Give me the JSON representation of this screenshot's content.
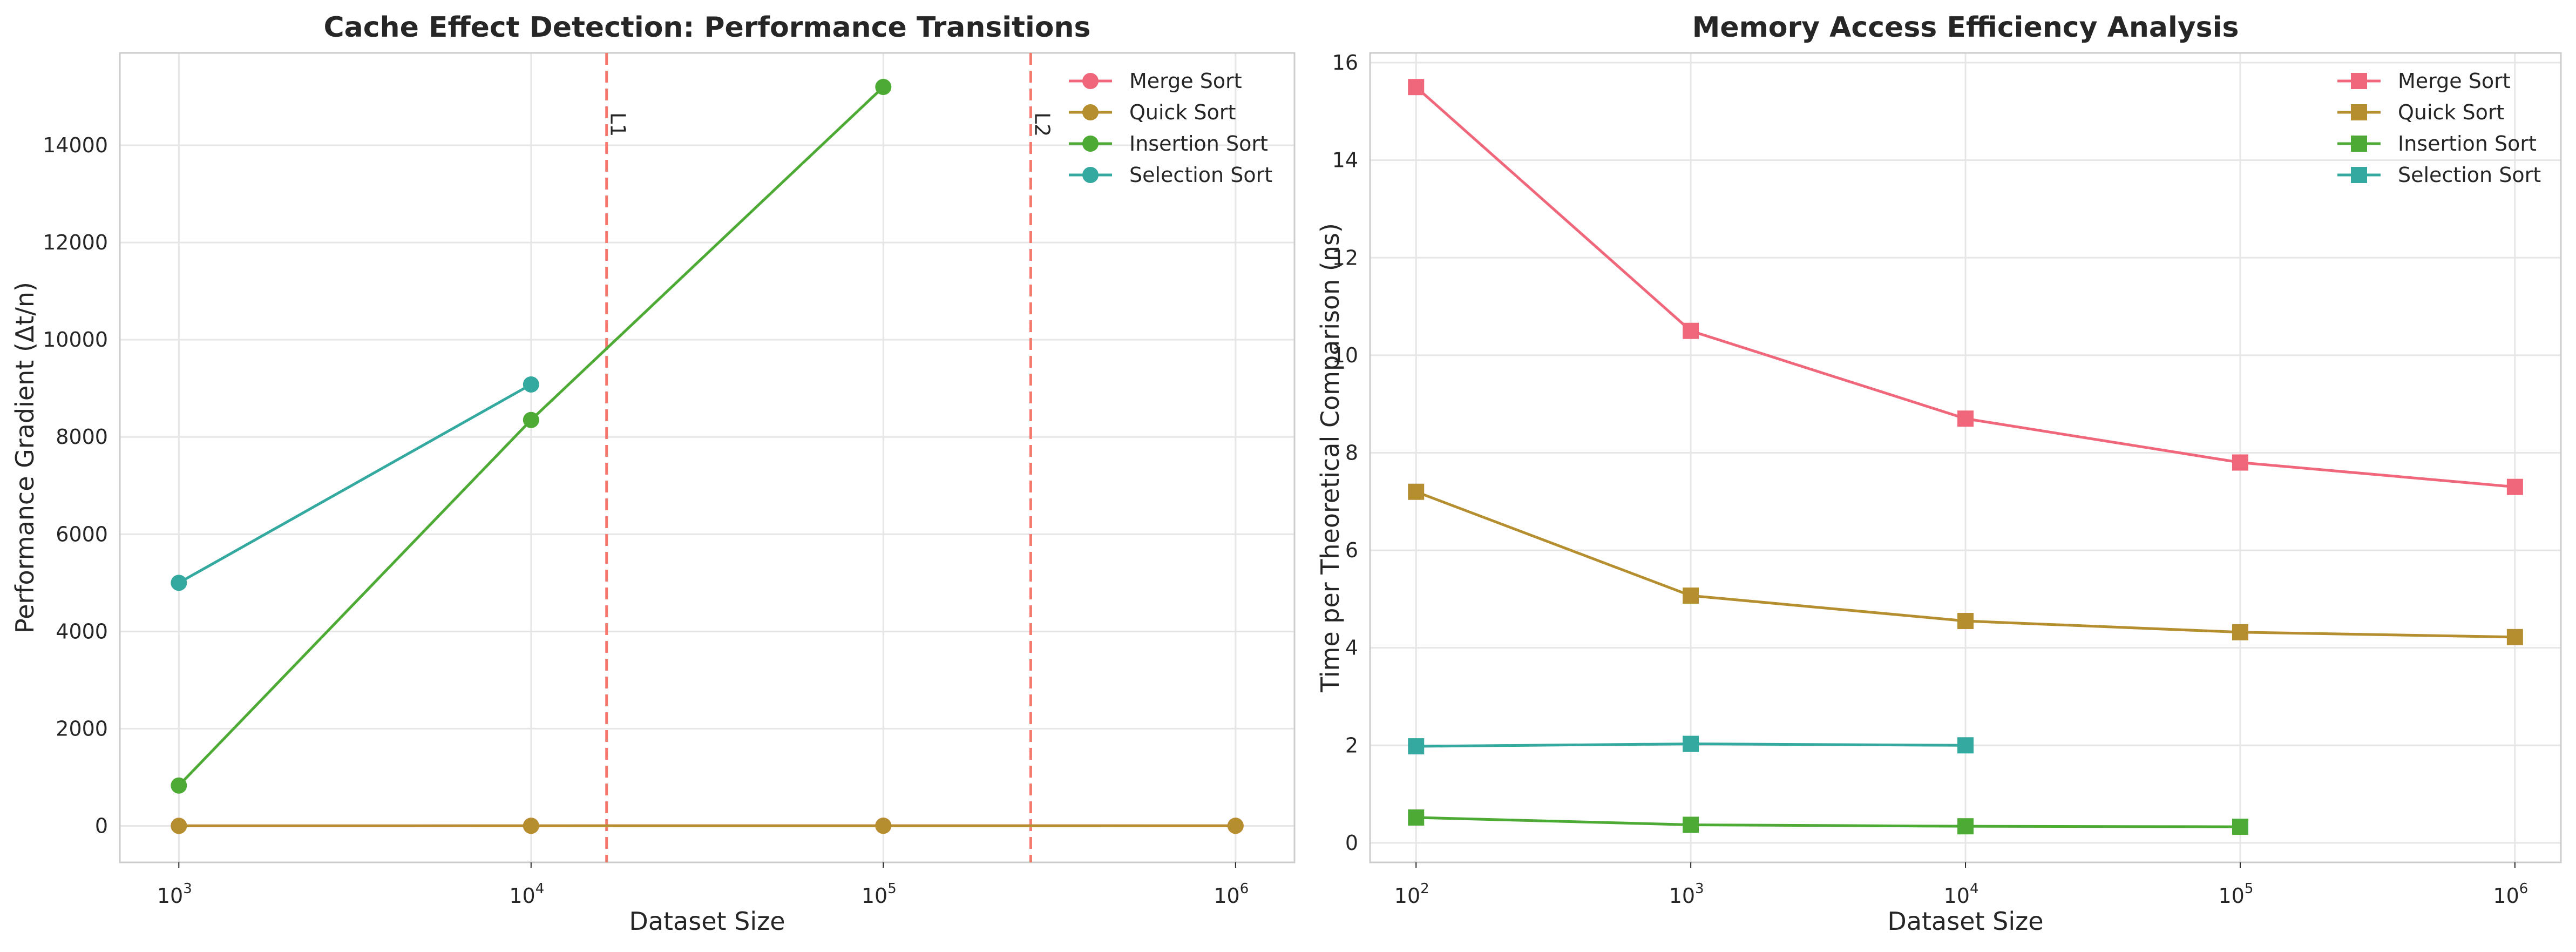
{
  "chart_data": [
    {
      "type": "line",
      "title": "Cache Effect Detection: Performance Transitions",
      "xlabel": "Dataset Size",
      "ylabel": "Performance Gradient (Δt/n)",
      "x_scale": "log",
      "xlim": [
        680,
        1470000
      ],
      "ylim": [
        -750,
        15900
      ],
      "x_ticks": [
        1000,
        10000,
        100000,
        1000000
      ],
      "x_tick_labels": [
        {
          "base": "10",
          "exp": "3"
        },
        {
          "base": "10",
          "exp": "4"
        },
        {
          "base": "10",
          "exp": "5"
        },
        {
          "base": "10",
          "exp": "6"
        }
      ],
      "y_ticks": [
        0,
        2000,
        4000,
        6000,
        8000,
        10000,
        12000,
        14000
      ],
      "y_tick_labels": [
        "0",
        "2000",
        "4000",
        "6000",
        "8000",
        "10000",
        "12000",
        "14000"
      ],
      "grid": true,
      "legend": "top-right",
      "marker": "circle",
      "series": [
        {
          "name": "Merge Sort",
          "color": "#f0677b",
          "points": [
            [
              1000,
              2
            ],
            [
              10000,
              3
            ],
            [
              100000,
              4
            ],
            [
              1000000,
              3
            ]
          ]
        },
        {
          "name": "Quick Sort",
          "color": "#b58f2f",
          "points": [
            [
              1000,
              1
            ],
            [
              10000,
              2
            ],
            [
              100000,
              3
            ],
            [
              1000000,
              2
            ]
          ]
        },
        {
          "name": "Insertion Sort",
          "color": "#4dab35",
          "points": [
            [
              1000,
              830
            ],
            [
              10000,
              8350
            ],
            [
              100000,
              15200
            ]
          ]
        },
        {
          "name": "Selection Sort",
          "color": "#33a99f",
          "points": [
            [
              1000,
              5000
            ],
            [
              10000,
              9080
            ]
          ]
        }
      ],
      "vlines": [
        {
          "label": "L1",
          "x": 16384,
          "color": "#f47a6e"
        },
        {
          "label": "L2",
          "x": 262144,
          "color": "#f47a6e"
        }
      ]
    },
    {
      "type": "line",
      "title": "Memory Access Efficiency Analysis",
      "xlabel": "Dataset Size",
      "ylabel": "Time per Theoretical Comparison (ns)",
      "x_scale": "log",
      "xlim": [
        68,
        1470000
      ],
      "ylim": [
        -0.4,
        16.2
      ],
      "x_ticks": [
        100,
        1000,
        10000,
        100000,
        1000000
      ],
      "x_tick_labels": [
        {
          "base": "10",
          "exp": "2"
        },
        {
          "base": "10",
          "exp": "3"
        },
        {
          "base": "10",
          "exp": "4"
        },
        {
          "base": "10",
          "exp": "5"
        },
        {
          "base": "10",
          "exp": "6"
        }
      ],
      "y_ticks": [
        0,
        2,
        4,
        6,
        8,
        10,
        12,
        14,
        16
      ],
      "y_tick_labels": [
        "0",
        "2",
        "4",
        "6",
        "8",
        "10",
        "12",
        "14",
        "16"
      ],
      "grid": true,
      "legend": "top-right",
      "marker": "square",
      "series": [
        {
          "name": "Merge Sort",
          "color": "#f0677b",
          "points": [
            [
              100,
              15.5
            ],
            [
              1000,
              10.5
            ],
            [
              10000,
              8.7
            ],
            [
              100000,
              7.8
            ],
            [
              1000000,
              7.3
            ]
          ]
        },
        {
          "name": "Quick Sort",
          "color": "#b58f2f",
          "points": [
            [
              100,
              7.2
            ],
            [
              1000,
              5.07
            ],
            [
              10000,
              4.55
            ],
            [
              100000,
              4.32
            ],
            [
              1000000,
              4.22
            ]
          ]
        },
        {
          "name": "Insertion Sort",
          "color": "#4dab35",
          "points": [
            [
              100,
              0.52
            ],
            [
              1000,
              0.37
            ],
            [
              10000,
              0.34
            ],
            [
              100000,
              0.33
            ]
          ]
        },
        {
          "name": "Selection Sort",
          "color": "#33a99f",
          "points": [
            [
              100,
              1.98
            ],
            [
              1000,
              2.03
            ],
            [
              10000,
              2.0
            ]
          ]
        }
      ]
    }
  ]
}
